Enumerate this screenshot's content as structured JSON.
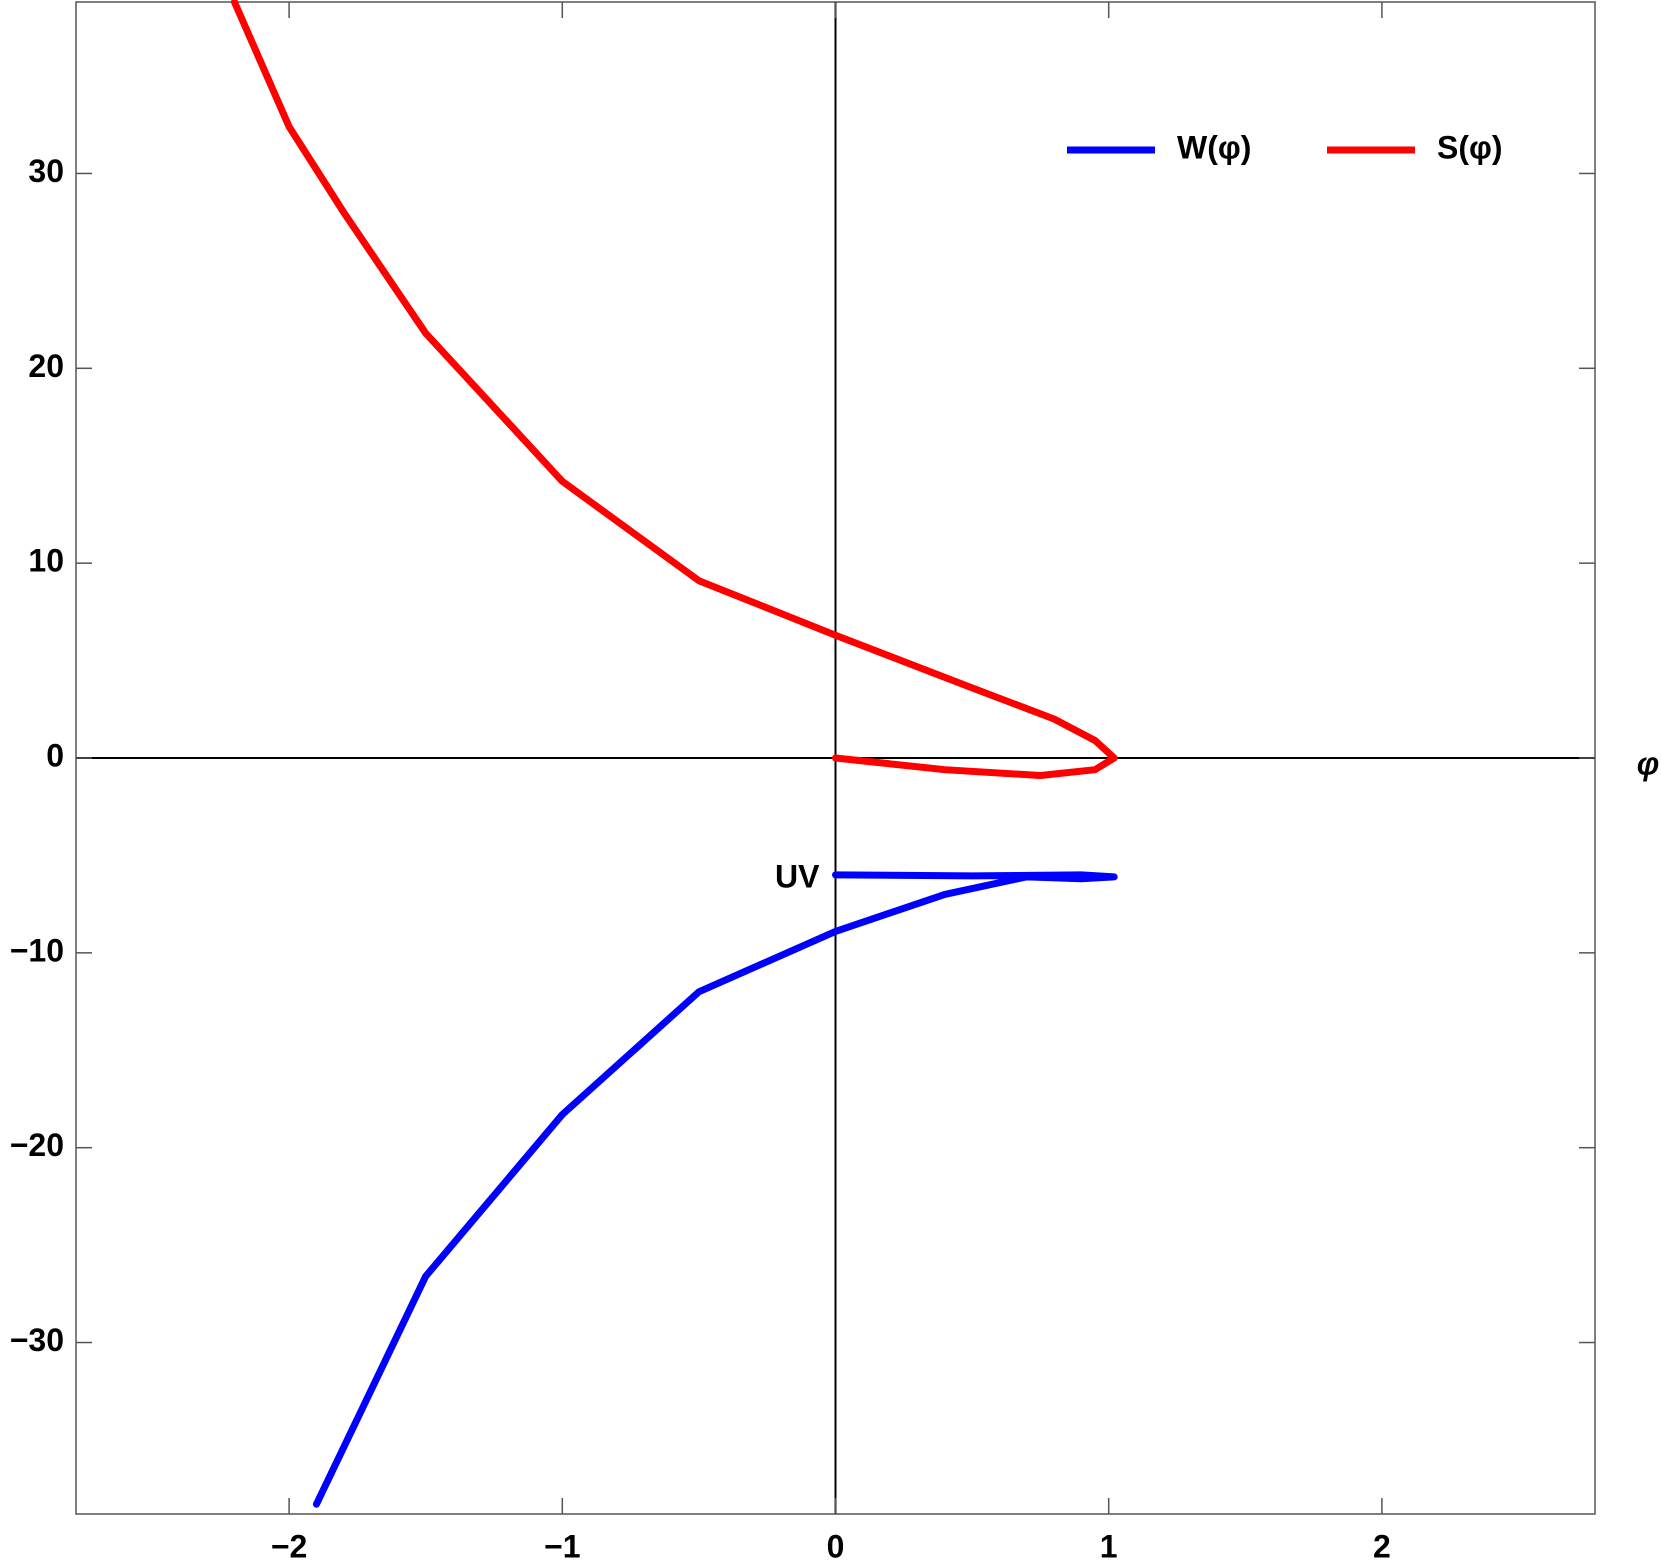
{
  "chart_data": {
    "type": "line",
    "x_label": "φ",
    "annotation": "UV",
    "series": [
      {
        "name": "W(φ)",
        "color": "#0000ff",
        "x": [
          0,
          0.5,
          0.9,
          1.02,
          0.9,
          0.7,
          0.4,
          0,
          -0.5,
          -1,
          -1.5,
          -1.9
        ],
        "values": [
          -6,
          -6.05,
          -6.0,
          -6.1,
          -6.2,
          -6.1,
          -7.0,
          -8.9,
          -12,
          -18.3,
          -26.6,
          -38.3
        ]
      },
      {
        "name": "S(φ)",
        "color": "#ff0000",
        "x": [
          -2.2,
          -2.0,
          -1.8,
          -1.5,
          -1.0,
          -0.5,
          0,
          0.5,
          0.8,
          0.95,
          1.02,
          0.95,
          0.75,
          0.4,
          0
        ],
        "values": [
          38.8,
          32.4,
          28.0,
          21.8,
          14.2,
          9.1,
          6.3,
          3.6,
          2.0,
          0.9,
          0,
          -0.6,
          -0.9,
          -0.6,
          0
        ]
      }
    ],
    "xlim": [
      -2.78,
      2.78
    ],
    "ylim": [
      -38.8,
      38.8
    ],
    "xticks": [
      {
        "value": -2,
        "label": "−2"
      },
      {
        "value": -1,
        "label": "−1"
      },
      0,
      1,
      2
    ],
    "yticks": [
      {
        "value": -30,
        "label": "−30"
      },
      {
        "value": -20,
        "label": "−20"
      },
      {
        "value": -10,
        "label": "−10"
      },
      0,
      10,
      20,
      30
    ],
    "legend": "upper right"
  }
}
